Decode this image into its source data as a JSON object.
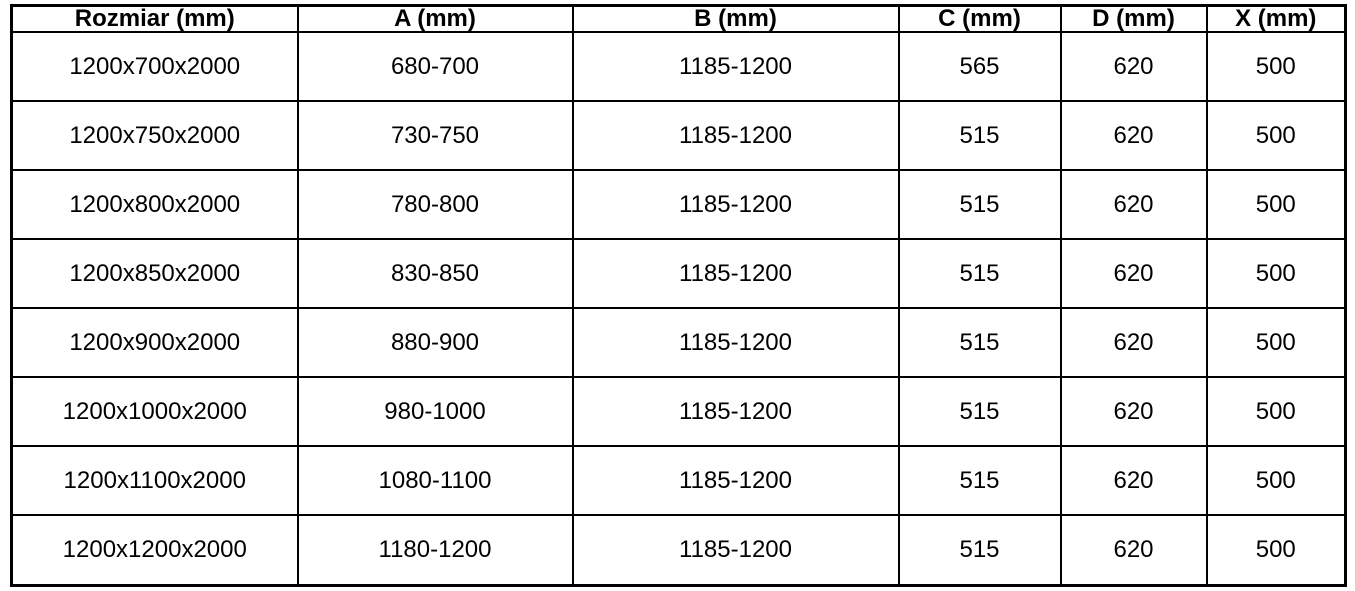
{
  "table": {
    "headers": [
      "Rozmiar (mm)",
      "A (mm)",
      "B (mm)",
      "C (mm)",
      "D (mm)",
      "X (mm)"
    ],
    "rows": [
      [
        "1200x700x2000",
        "680-700",
        "1185-1200",
        "565",
        "620",
        "500"
      ],
      [
        "1200x750x2000",
        "730-750",
        "1185-1200",
        "515",
        "620",
        "500"
      ],
      [
        "1200x800x2000",
        "780-800",
        "1185-1200",
        "515",
        "620",
        "500"
      ],
      [
        "1200x850x2000",
        "830-850",
        "1185-1200",
        "515",
        "620",
        "500"
      ],
      [
        "1200x900x2000",
        "880-900",
        "1185-1200",
        "515",
        "620",
        "500"
      ],
      [
        "1200x1000x2000",
        "980-1000",
        "1185-1200",
        "515",
        "620",
        "500"
      ],
      [
        "1200x1100x2000",
        "1080-1100",
        "1185-1200",
        "515",
        "620",
        "500"
      ],
      [
        "1200x1200x2000",
        "1180-1200",
        "1185-1200",
        "515",
        "620",
        "500"
      ]
    ],
    "colors": {
      "border": "#000000",
      "text": "#000000",
      "background": "#ffffff"
    }
  }
}
